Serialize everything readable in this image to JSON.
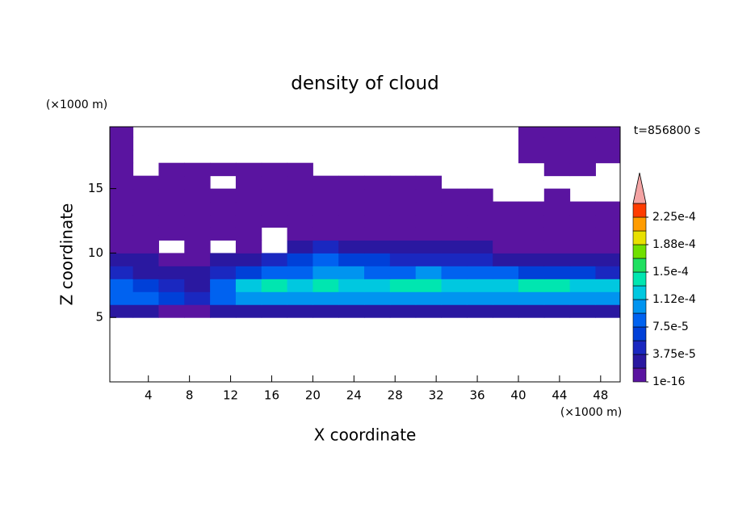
{
  "chart_data": {
    "type": "heatmap",
    "title": "density of cloud",
    "xlabel": "X coordinate",
    "ylabel": "Z coordinate",
    "x_unit": "(×1000 m)",
    "y_unit": "(×1000 m)",
    "annotation": "t=856800 s",
    "xlim": [
      0.25,
      49.9
    ],
    "ylim": [
      0,
      19.8
    ],
    "xticks": [
      4,
      8,
      12,
      16,
      20,
      24,
      28,
      32,
      36,
      40,
      44,
      48
    ],
    "yticks": [
      5,
      10,
      15
    ],
    "x": [
      1.25,
      3.75,
      6.25,
      8.75,
      11.25,
      13.75,
      16.25,
      18.75,
      21.25,
      23.75,
      26.25,
      28.75,
      31.25,
      33.75,
      36.25,
      38.75,
      41.25,
      43.75,
      46.25,
      48.75
    ],
    "y": [
      4.5,
      5.5,
      6.5,
      7.5,
      8.5,
      9.5,
      10.5,
      11.5,
      12.5,
      13.5,
      14.5,
      15.5,
      16.5,
      17.5,
      18.5,
      19.5
    ],
    "values": [
      [
        null,
        null,
        null,
        null,
        null,
        null,
        null,
        null,
        null,
        null,
        null,
        null,
        null,
        null,
        null,
        null,
        null,
        null,
        null,
        null
      ],
      [
        2e-05,
        2e-05,
        1e-05,
        1e-05,
        2e-05,
        3e-05,
        3e-05,
        3e-05,
        3e-05,
        3e-05,
        3e-05,
        3e-05,
        3e-05,
        3e-05,
        3e-05,
        3e-05,
        3e-05,
        3e-05,
        3e-05,
        3e-05
      ],
      [
        9e-05,
        9e-05,
        6e-05,
        4e-05,
        8e-05,
        0.0001,
        0.00011,
        0.0001,
        0.0001,
        0.0001,
        0.0001,
        0.0001,
        0.00011,
        0.00011,
        0.0001,
        0.00011,
        0.00011,
        0.00011,
        0.00011,
        0.0001
      ],
      [
        8e-05,
        6e-05,
        4e-05,
        3e-05,
        9e-05,
        0.00012,
        0.00014,
        0.00013,
        0.00014,
        0.00013,
        0.00012,
        0.00014,
        0.00014,
        0.00013,
        0.00012,
        0.00013,
        0.00014,
        0.00014,
        0.00013,
        0.00012
      ],
      [
        4e-05,
        3e-05,
        2e-05,
        2e-05,
        5e-05,
        7e-05,
        8e-05,
        9e-05,
        0.00011,
        0.0001,
        9e-05,
        9e-05,
        0.0001,
        9e-05,
        8e-05,
        8e-05,
        7e-05,
        7e-05,
        6e-05,
        5e-05
      ],
      [
        2e-05,
        2e-05,
        1e-05,
        1e-05,
        2e-05,
        3e-05,
        4e-05,
        7e-05,
        8e-05,
        7e-05,
        6e-05,
        5e-05,
        5e-05,
        4e-05,
        4e-05,
        3e-05,
        3e-05,
        3e-05,
        2.5e-05,
        2.5e-05
      ],
      [
        1e-05,
        1e-05,
        null,
        1e-05,
        null,
        1e-05,
        null,
        2e-05,
        4e-05,
        3e-05,
        2e-05,
        2e-05,
        2e-05,
        2e-05,
        2e-05,
        1.5e-05,
        1.5e-05,
        1.5e-05,
        1.5e-05,
        1.5e-05
      ],
      [
        5e-06,
        5e-06,
        5e-06,
        5e-06,
        5e-06,
        5e-06,
        null,
        1e-05,
        1.5e-05,
        1.5e-05,
        1.5e-05,
        1e-05,
        1e-05,
        1e-05,
        1e-05,
        5e-06,
        5e-06,
        5e-06,
        5e-06,
        5e-06
      ],
      [
        5e-06,
        5e-06,
        5e-06,
        5e-06,
        5e-06,
        5e-06,
        5e-06,
        5e-06,
        1e-05,
        1e-05,
        5e-06,
        5e-06,
        5e-06,
        5e-06,
        5e-06,
        5e-06,
        5e-06,
        5e-06,
        5e-06,
        5e-06
      ],
      [
        5e-06,
        5e-06,
        5e-06,
        5e-06,
        5e-06,
        5e-06,
        5e-06,
        5e-06,
        5e-06,
        5e-06,
        5e-06,
        5e-06,
        5e-06,
        5e-06,
        5e-06,
        5e-06,
        5e-06,
        5e-06,
        5e-06,
        5e-06
      ],
      [
        5e-06,
        5e-06,
        5e-06,
        5e-06,
        5e-06,
        5e-06,
        5e-06,
        5e-06,
        5e-06,
        5e-06,
        5e-06,
        5e-06,
        5e-06,
        5e-06,
        5e-06,
        null,
        null,
        5e-06,
        null,
        null
      ],
      [
        5e-06,
        5e-06,
        5e-06,
        5e-06,
        null,
        5e-06,
        5e-06,
        5e-06,
        5e-06,
        5e-06,
        5e-06,
        5e-06,
        5e-06,
        null,
        null,
        null,
        null,
        null,
        null,
        null
      ],
      [
        5e-06,
        null,
        5e-06,
        5e-06,
        5e-06,
        5e-06,
        5e-06,
        5e-06,
        null,
        null,
        null,
        null,
        null,
        null,
        null,
        null,
        null,
        5e-06,
        5e-06,
        null
      ],
      [
        5e-06,
        null,
        null,
        null,
        null,
        null,
        null,
        null,
        null,
        null,
        null,
        null,
        null,
        null,
        null,
        null,
        5e-06,
        5e-06,
        5e-06,
        5e-06
      ],
      [
        5e-06,
        null,
        null,
        null,
        null,
        null,
        null,
        null,
        null,
        null,
        null,
        null,
        null,
        null,
        null,
        null,
        5e-06,
        5e-06,
        5e-06,
        5e-06
      ],
      [
        5e-06,
        null,
        null,
        null,
        null,
        null,
        null,
        null,
        null,
        null,
        null,
        null,
        null,
        null,
        null,
        null,
        5e-06,
        5e-06,
        5e-06,
        5e-06
      ]
    ],
    "levels": [
      1e-16,
      1.875e-05,
      3.75e-05,
      5.625e-05,
      7.5e-05,
      9.375e-05,
      0.0001125,
      0.00013125,
      0.00015,
      0.00016875,
      0.0001875,
      0.00020625,
      0.000225,
      0.00024375
    ],
    "colors": [
      "#5a14a0",
      "#2a18a0",
      "#1a28c0",
      "#0040d8",
      "#0062f0",
      "#0094f0",
      "#00c8e0",
      "#00e6b0",
      "#20e060",
      "#70e000",
      "#e8e000",
      "#ff9c00",
      "#ff3c00"
    ],
    "extend_color": "#f4a4a4",
    "colorbar_ticks": [
      {
        "value": 1e-16,
        "label": "1e-16"
      },
      {
        "value": 3.75e-05,
        "label": "3.75e-5"
      },
      {
        "value": 7.5e-05,
        "label": "7.5e-5"
      },
      {
        "value": 0.0001125,
        "label": "1.12e-4"
      },
      {
        "value": 0.00015,
        "label": "1.5e-4"
      },
      {
        "value": 0.0001875,
        "label": "1.88e-4"
      },
      {
        "value": 0.000225,
        "label": "2.25e-4"
      }
    ]
  }
}
